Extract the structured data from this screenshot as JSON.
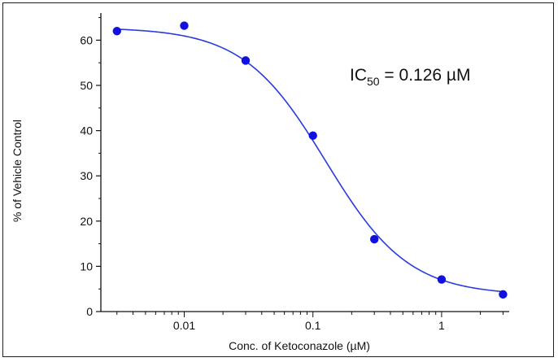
{
  "chart_data": {
    "type": "scatter",
    "title": "",
    "xlabel": "Conc. of Ketoconazole  (µM)",
    "ylabel": "% of Vehicle Control",
    "x_scale": "log",
    "xlim": [
      0.00225,
      3.35
    ],
    "ylim": [
      0,
      66
    ],
    "x_ticks": [
      0.01,
      0.1,
      1
    ],
    "x_tick_labels": [
      "0.01",
      "0.1",
      "1"
    ],
    "y_ticks": [
      0,
      10,
      20,
      30,
      40,
      50,
      60
    ],
    "y_tick_labels": [
      "0",
      "10",
      "20",
      "30",
      "40",
      "50",
      "60"
    ],
    "grid": false,
    "legend": "none",
    "marker_color": "#1010e0",
    "curve_color": "#2a3be0",
    "points": [
      {
        "x": 0.003,
        "y": 62.0
      },
      {
        "x": 0.01,
        "y": 63.2
      },
      {
        "x": 0.03,
        "y": 55.5
      },
      {
        "x": 0.1,
        "y": 38.9
      },
      {
        "x": 0.3,
        "y": 16.0
      },
      {
        "x": 1,
        "y": 7.1
      },
      {
        "x": 3,
        "y": 3.8
      }
    ],
    "fit": {
      "model": "four-parameter logistic",
      "top": 62.8,
      "bottom": 3.6,
      "ic50": 0.126,
      "hill": 1.35
    },
    "annotation": {
      "prefix": "IC",
      "subscript": "50",
      "suffix": " = 0.126 µM"
    }
  }
}
